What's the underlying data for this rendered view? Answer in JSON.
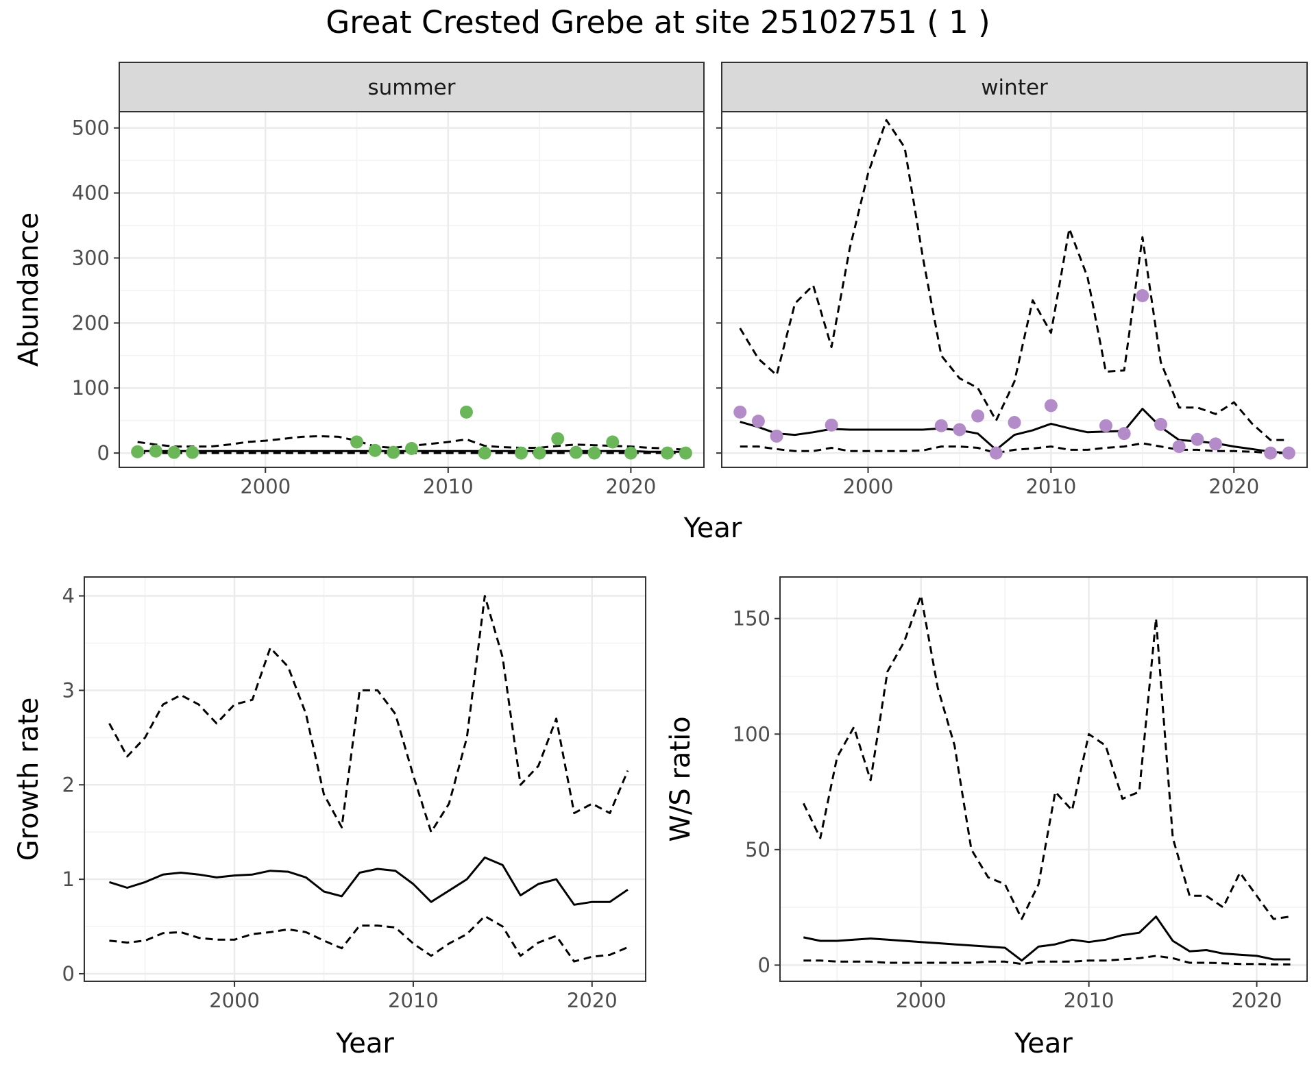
{
  "title": "Great Crested Grebe at site 25102751 ( 1 )",
  "colors": {
    "summer_points": "#6ab758",
    "winter_points": "#b28bc8",
    "line": "#000000",
    "strip_fill": "#d9d9d9",
    "grid_major": "#ebebeb",
    "grid_minor": "#f2f2f2",
    "panel_border": "#333333"
  },
  "chart_data": [
    {
      "type": "line",
      "panel": "summer",
      "facet_label": "summer",
      "xlabel": "Year",
      "ylabel": "Abundance",
      "xlim": [
        1992,
        2024
      ],
      "ylim": [
        -22,
        525
      ],
      "xticks": [
        2000,
        2010,
        2020
      ],
      "yticks": [
        0,
        100,
        200,
        300,
        400,
        500
      ],
      "x": [
        1993,
        1994,
        1995,
        1996,
        1997,
        1998,
        1999,
        2000,
        2001,
        2002,
        2003,
        2004,
        2005,
        2006,
        2007,
        2008,
        2009,
        2010,
        2011,
        2012,
        2013,
        2014,
        2015,
        2016,
        2017,
        2018,
        2019,
        2020,
        2021,
        2022,
        2023
      ],
      "series": [
        {
          "style": "dashed",
          "values": [
            17,
            13,
            10,
            10,
            10,
            13,
            17,
            19,
            22,
            25,
            26,
            25,
            19,
            10,
            8,
            11,
            14,
            17,
            21,
            11,
            9,
            8,
            8,
            11,
            13,
            12,
            11,
            10,
            8,
            7,
            5
          ]
        },
        {
          "style": "solid",
          "values": [
            3,
            3,
            3,
            3,
            3,
            3,
            3,
            3,
            3,
            3,
            3,
            3,
            3,
            3,
            3,
            3,
            3,
            3,
            3,
            3,
            3,
            3,
            3,
            3,
            3,
            3,
            3,
            3,
            2,
            2,
            2
          ]
        },
        {
          "style": "dashed",
          "values": [
            0,
            0,
            0,
            0,
            0,
            0,
            0,
            0,
            0,
            0,
            0,
            0,
            0,
            0,
            0,
            0,
            0,
            0,
            0,
            0,
            0,
            0,
            0,
            0,
            0,
            0,
            0,
            0,
            0,
            0,
            0
          ]
        }
      ],
      "points": {
        "x": [
          1993,
          1994,
          1995,
          1996,
          2005,
          2006,
          2007,
          2008,
          2011,
          2012,
          2014,
          2015,
          2016,
          2017,
          2018,
          2019,
          2020,
          2022,
          2023
        ],
        "y": [
          2,
          3,
          1,
          1,
          17,
          4,
          1,
          7,
          63,
          0,
          0,
          0,
          22,
          1,
          0,
          17,
          0,
          0,
          0
        ]
      }
    },
    {
      "type": "line",
      "panel": "winter",
      "facet_label": "winter",
      "xlabel": "Year",
      "ylabel": "Abundance",
      "xlim": [
        1992,
        2024
      ],
      "ylim": [
        -22,
        525
      ],
      "xticks": [
        2000,
        2010,
        2020
      ],
      "yticks": [
        0,
        100,
        200,
        300,
        400,
        500
      ],
      "x": [
        1993,
        1994,
        1995,
        1996,
        1997,
        1998,
        1999,
        2000,
        2001,
        2002,
        2003,
        2004,
        2005,
        2006,
        2007,
        2008,
        2009,
        2010,
        2011,
        2012,
        2013,
        2014,
        2015,
        2016,
        2017,
        2018,
        2019,
        2020,
        2021,
        2022,
        2023
      ],
      "series": [
        {
          "style": "dashed",
          "values": [
            192,
            145,
            120,
            230,
            258,
            163,
            315,
            430,
            512,
            470,
            300,
            150,
            115,
            100,
            50,
            110,
            235,
            185,
            345,
            270,
            125,
            127,
            332,
            140,
            70,
            70,
            60,
            78,
            45,
            20,
            20
          ]
        },
        {
          "style": "solid",
          "values": [
            48,
            40,
            30,
            28,
            32,
            37,
            36,
            36,
            36,
            36,
            36,
            38,
            35,
            30,
            5,
            28,
            35,
            45,
            38,
            32,
            33,
            34,
            68,
            40,
            20,
            18,
            15,
            10,
            6,
            2,
            0
          ]
        },
        {
          "style": "dashed",
          "values": [
            10,
            10,
            6,
            3,
            3,
            8,
            3,
            3,
            3,
            3,
            4,
            10,
            10,
            8,
            0,
            5,
            7,
            10,
            5,
            5,
            8,
            10,
            15,
            10,
            5,
            5,
            3,
            3,
            2,
            0,
            0
          ]
        }
      ],
      "points": {
        "x": [
          1993,
          1994,
          1995,
          1998,
          2004,
          2005,
          2006,
          2007,
          2008,
          2010,
          2013,
          2014,
          2015,
          2016,
          2017,
          2018,
          2019,
          2022,
          2023
        ],
        "y": [
          63,
          49,
          26,
          43,
          42,
          36,
          57,
          0,
          47,
          73,
          42,
          30,
          242,
          44,
          10,
          21,
          14,
          0,
          0
        ]
      }
    },
    {
      "type": "line",
      "panel": "growth",
      "xlabel": "Year",
      "ylabel": "Growth rate",
      "xlim": [
        1991.6,
        2023.0
      ],
      "ylim": [
        -0.08,
        4.2
      ],
      "xticks": [
        2000,
        2010,
        2020
      ],
      "yticks": [
        0,
        1,
        2,
        3,
        4
      ],
      "x": [
        1993,
        1994,
        1995,
        1996,
        1997,
        1998,
        1999,
        2000,
        2001,
        2002,
        2003,
        2004,
        2005,
        2006,
        2007,
        2008,
        2009,
        2010,
        2011,
        2012,
        2013,
        2014,
        2015,
        2016,
        2017,
        2018,
        2019,
        2020,
        2021,
        2022
      ],
      "series": [
        {
          "style": "dashed",
          "values": [
            2.65,
            2.3,
            2.5,
            2.85,
            2.95,
            2.85,
            2.65,
            2.85,
            2.9,
            3.45,
            3.25,
            2.75,
            1.9,
            1.55,
            3.0,
            3.0,
            2.75,
            2.1,
            1.5,
            1.8,
            2.5,
            4.0,
            3.35,
            2.0,
            2.2,
            2.7,
            1.7,
            1.8,
            1.7,
            2.15
          ]
        },
        {
          "style": "solid",
          "values": [
            0.97,
            0.91,
            0.97,
            1.05,
            1.07,
            1.05,
            1.02,
            1.04,
            1.05,
            1.09,
            1.08,
            1.02,
            0.87,
            0.82,
            1.07,
            1.11,
            1.09,
            0.95,
            0.76,
            0.88,
            1.0,
            1.23,
            1.15,
            0.83,
            0.95,
            1.0,
            0.73,
            0.76,
            0.76,
            0.89
          ]
        },
        {
          "style": "dashed",
          "values": [
            0.35,
            0.33,
            0.35,
            0.43,
            0.44,
            0.38,
            0.36,
            0.36,
            0.42,
            0.44,
            0.47,
            0.44,
            0.35,
            0.27,
            0.51,
            0.51,
            0.49,
            0.32,
            0.19,
            0.32,
            0.42,
            0.61,
            0.5,
            0.19,
            0.33,
            0.4,
            0.13,
            0.18,
            0.2,
            0.28
          ]
        }
      ]
    },
    {
      "type": "line",
      "panel": "ws-ratio",
      "xlabel": "Year",
      "ylabel": "W/S ratio",
      "xlim": [
        1991.6,
        2023.0
      ],
      "ylim": [
        -7,
        168
      ],
      "xticks": [
        2000,
        2010,
        2020
      ],
      "yticks": [
        0,
        50,
        100,
        150
      ],
      "x": [
        1993,
        1994,
        1995,
        1996,
        1997,
        1998,
        1999,
        2000,
        2001,
        2002,
        2003,
        2004,
        2005,
        2006,
        2007,
        2008,
        2009,
        2010,
        2011,
        2012,
        2013,
        2014,
        2015,
        2016,
        2017,
        2018,
        2019,
        2020,
        2021,
        2022
      ],
      "series": [
        {
          "style": "dashed",
          "values": [
            70,
            55,
            90,
            103,
            80,
            127,
            140,
            160,
            120,
            95,
            50,
            38,
            35,
            20,
            35,
            75,
            67,
            100,
            95,
            72,
            75,
            150,
            55,
            30,
            30,
            25,
            40,
            30,
            20,
            21
          ]
        },
        {
          "style": "solid",
          "values": [
            12,
            10.5,
            10.5,
            11,
            11.5,
            11,
            10.5,
            10,
            9.5,
            9,
            8.5,
            8,
            7.5,
            2,
            8,
            9,
            11,
            10,
            11,
            13,
            14,
            21,
            10.5,
            6,
            6.5,
            5,
            4.5,
            4,
            2.5,
            2.5
          ]
        },
        {
          "style": "dashed",
          "values": [
            2,
            2,
            1.5,
            1.5,
            1.5,
            1,
            1,
            1,
            1,
            1,
            1,
            1.5,
            1.5,
            0.5,
            1.5,
            1.5,
            1.5,
            2,
            2,
            2.5,
            3,
            4,
            3,
            1,
            1,
            0.8,
            0.5,
            0.5,
            0.3,
            0.3
          ]
        }
      ]
    }
  ]
}
